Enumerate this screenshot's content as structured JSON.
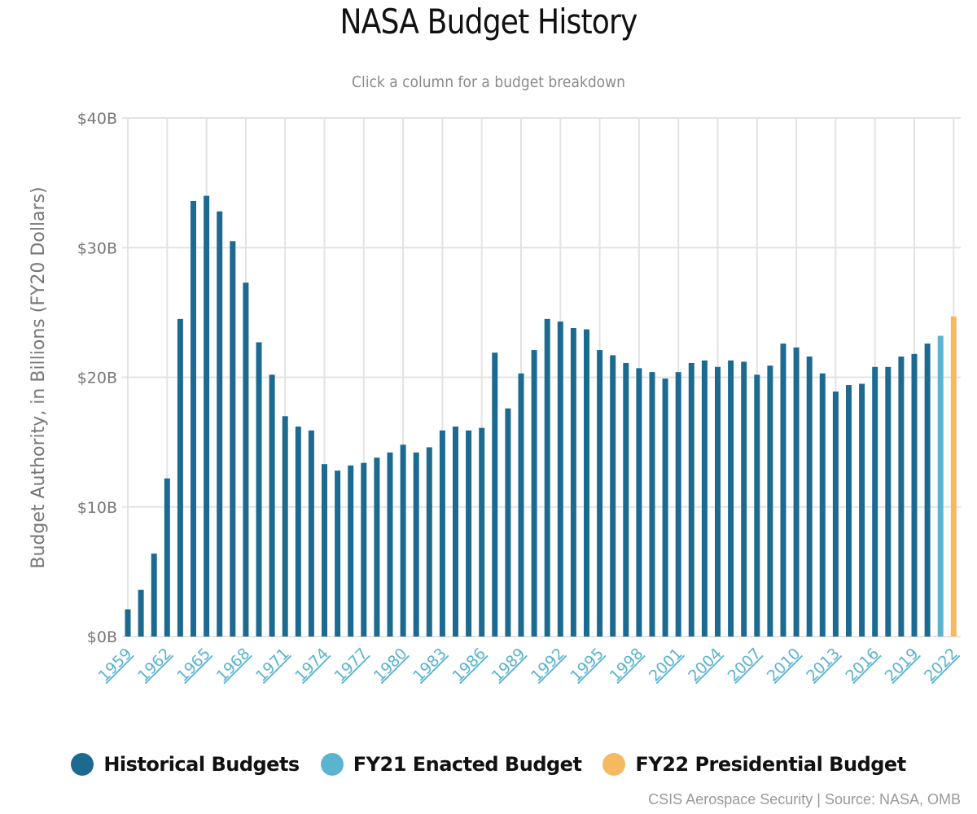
{
  "chart_data": {
    "type": "bar",
    "title": "NASA Budget History",
    "subtitle": "Click a column for a budget breakdown",
    "xlabel": "",
    "ylabel": "Budget Authority, in Billions (FY20 Dollars)",
    "ylim": [
      0,
      40
    ],
    "yticks": [
      0,
      10,
      20,
      30,
      40
    ],
    "ytick_labels": [
      "$0B",
      "$10B",
      "$20B",
      "$30B",
      "$40B"
    ],
    "xtick_labels": [
      "1959",
      "1962",
      "1965",
      "1968",
      "1971",
      "1974",
      "1977",
      "1980",
      "1983",
      "1986",
      "1989",
      "1992",
      "1995",
      "1998",
      "2001",
      "2004",
      "2007",
      "2010",
      "2013",
      "2016",
      "2019",
      "2022"
    ],
    "grid": true,
    "legend_position": "bottom",
    "categories": [
      "1959",
      "1960",
      "1961",
      "1962",
      "1963",
      "1964",
      "1965",
      "1966",
      "1967",
      "1968",
      "1969",
      "1970",
      "1971",
      "1972",
      "1973",
      "1974",
      "1975",
      "1976",
      "1977",
      "1978",
      "1979",
      "1980",
      "1981",
      "1982",
      "1983",
      "1984",
      "1985",
      "1986",
      "1987",
      "1988",
      "1989",
      "1990",
      "1991",
      "1992",
      "1993",
      "1994",
      "1995",
      "1996",
      "1997",
      "1998",
      "1999",
      "2000",
      "2001",
      "2002",
      "2003",
      "2004",
      "2005",
      "2006",
      "2007",
      "2008",
      "2009",
      "2010",
      "2011",
      "2012",
      "2013",
      "2014",
      "2015",
      "2016",
      "2017",
      "2018",
      "2019",
      "2020",
      "2021",
      "2022"
    ],
    "values": [
      2.1,
      3.6,
      6.4,
      12.2,
      24.5,
      33.6,
      34.0,
      32.8,
      30.5,
      27.3,
      22.7,
      20.2,
      17.0,
      16.2,
      15.9,
      13.3,
      12.8,
      13.2,
      13.4,
      13.8,
      14.2,
      14.8,
      14.2,
      14.6,
      15.9,
      16.2,
      15.9,
      16.1,
      21.9,
      17.6,
      20.3,
      22.1,
      24.5,
      24.3,
      23.8,
      23.7,
      22.1,
      21.7,
      21.1,
      20.7,
      20.4,
      19.9,
      20.4,
      21.1,
      21.3,
      20.8,
      21.3,
      21.2,
      20.2,
      20.9,
      22.6,
      22.3,
      21.6,
      20.3,
      18.9,
      19.4,
      19.5,
      20.8,
      20.8,
      21.6,
      21.8,
      22.6,
      23.2,
      24.7
    ],
    "series": [
      {
        "name": "Historical Budgets",
        "color": "#1d6a91",
        "years": "1959-2020"
      },
      {
        "name": "FY21 Enacted Budget",
        "color": "#5bb4cf",
        "years": "2021"
      },
      {
        "name": "FY22 Presidential Budget",
        "color": "#f5b961",
        "years": "2022"
      }
    ]
  },
  "credits": "CSIS Aerospace Security | Source: NASA, OMB"
}
